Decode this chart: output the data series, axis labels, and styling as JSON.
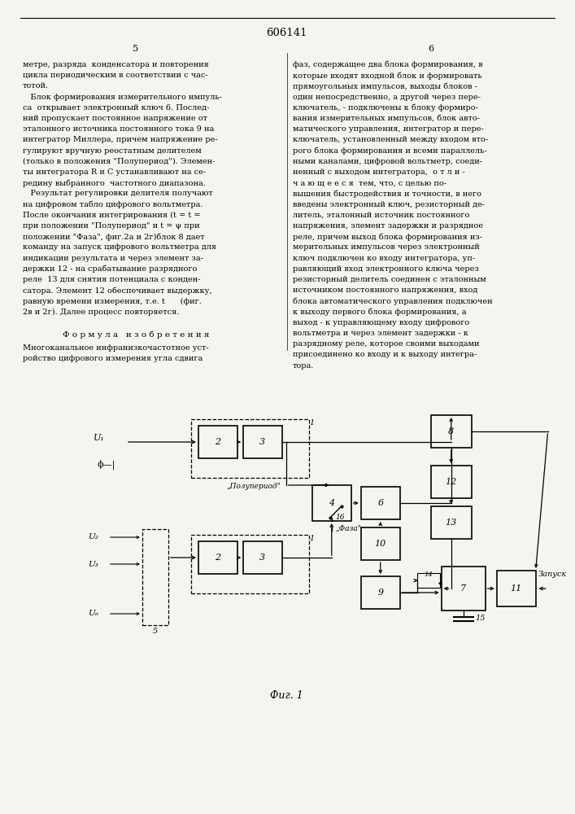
{
  "title": "606141",
  "page_left": "5",
  "page_right": "6",
  "left_text_lines": [
    "метре, разряда  конденсатора и повторения",
    "цикла периодическим в соответствии с час-",
    "тотой.",
    "   Блок формирования измерительного импуль-",
    "са  открывает электронный ключ 6. Послед-",
    "ний пропускает постоянное напряжение от",
    "эталонного источника постоянного тока 9 на",
    "интегратор Миллера, причем напряжение ре-",
    "гулируют вручную реостатным делителем",
    "(только в положения \"Полупериод\"). Элемен-",
    "ты интегратора R и С устанавливают на се-",
    "редину выбранного  частотного диапазона.",
    "   Результат регулировки делителя получают",
    "на цифровом табло цифрового вольтметра.",
    "После окончания интегрирования (t = t =",
    "при положении \"Полупериод\" и t = ψ при",
    "положении \"Фаза\", фиг.2а и 2г)блок 8 дает",
    "команду на запуск цифрового вольтметра для",
    "индикации результата и через элемент за-",
    "держки 12 - на срабатывание разрядного",
    "реле  13 для снятия потенциала с конден-",
    "сатора. Элемент 12 обеспечивает выдержку,",
    "равную времени измерения, т.е. t      (фиг.",
    "2в и 2г). Далее процесс повторяется."
  ],
  "right_text_lines": [
    "фаз, содержащее два блока формирования, в",
    "которые входят входной блок и формировать",
    "прямоугольных импульсов, выходы блоков -",
    "один непосредственно, а другой через пере-",
    "ключатель, - подключены к блоку формиро-",
    "вания измерительных импульсов, блок авто-",
    "матического управления, интегратор и пере-",
    "ключатель, установленный между входом вто-",
    "рого блока формирования и всеми параллель-",
    "ными каналами, цифровой вольтметр, соеди-",
    "ненный с выходом интегратора,  о т л и -",
    "ч а ю щ е е с я  тем, что, с целью по-",
    "вышения быстродействия и точности, в него",
    "введены электронный ключ, резисторный де-",
    "литель, эталонный источник постоянного",
    "напряжения, элемент задержки и разрядное",
    "реле, причем выход блока формирования из-",
    "мерительных импульсов через электронный",
    "ключ подключен ко входу интегратора, уп-",
    "равляющий вход электронного ключа через",
    "резисторный делитель соединен с эталонным",
    "источником постоянного напряжения, вход",
    "блока автоматического управления подключен",
    "к выходу первого блока формирования, а",
    "выход - к управляющему входу цифрового",
    "вольтметра и через элемент задержки - к",
    "разрядному реле, которое своими выходами",
    "присоединено ко входу и к выходу интегра-",
    "тора."
  ],
  "formula_header": "Ф о р м у л а   и з о б р е т е н и я",
  "formula_lines": [
    "Многоканальное инфранизкочастотное уст-",
    "ройство цифрового измерения угла сдвига"
  ],
  "fig_caption": "Фиг. 1",
  "background_color": "#f5f5f0"
}
